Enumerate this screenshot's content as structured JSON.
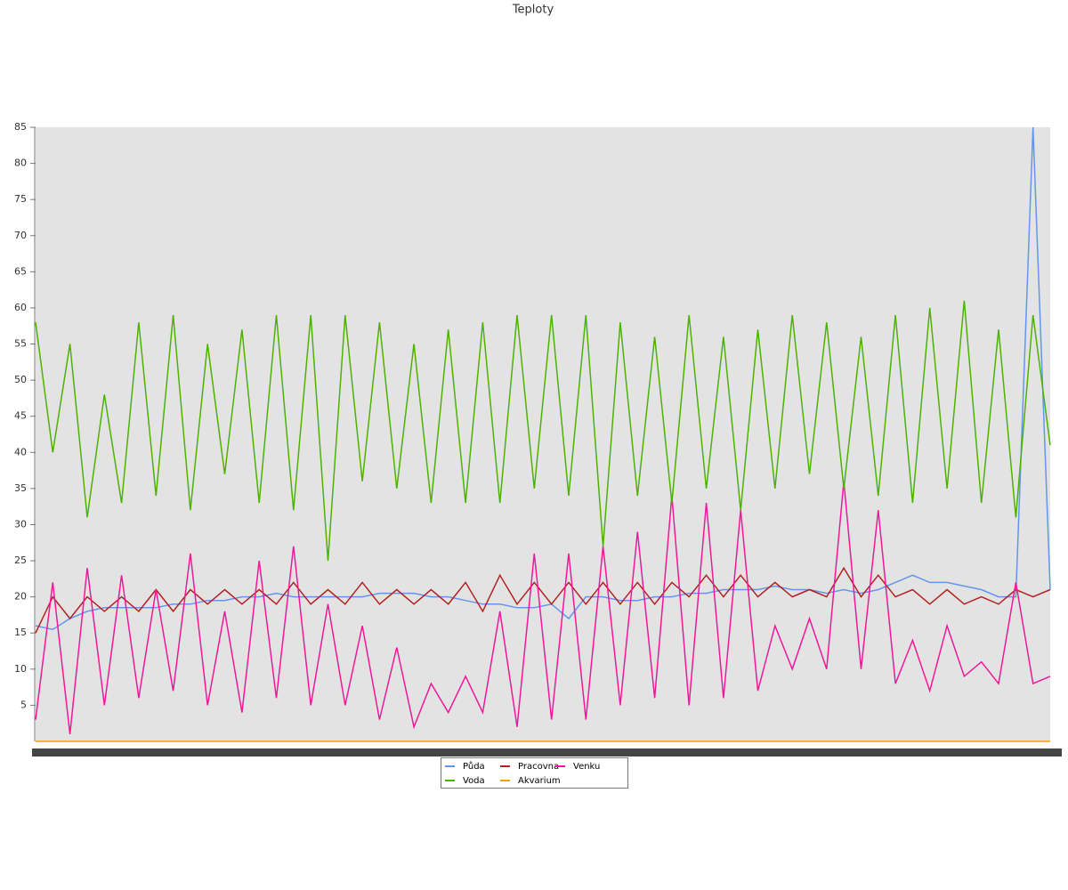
{
  "chart_data": {
    "type": "line",
    "title": "Teploty",
    "categories": [
      null,
      null,
      null,
      null,
      null,
      null,
      null,
      null,
      null,
      null,
      null,
      null,
      null,
      null,
      null,
      null,
      null,
      null,
      null,
      null,
      null,
      null,
      null,
      null,
      null,
      null,
      null,
      null,
      null,
      null,
      null,
      null,
      null,
      null,
      null,
      null,
      null,
      null,
      null,
      null,
      null,
      null,
      null,
      null,
      null,
      null,
      null,
      null,
      null,
      null,
      null,
      null,
      null,
      null,
      null,
      null,
      null,
      null,
      null,
      null
    ],
    "ylim": [
      0,
      85
    ],
    "yticks": [
      5,
      10,
      15,
      20,
      25,
      30,
      35,
      40,
      45,
      50,
      55,
      60,
      65,
      70,
      75,
      80,
      85
    ],
    "grid": false,
    "series": [
      {
        "name": "Půda",
        "color": "#6495ed",
        "values": [
          16,
          15.5,
          17,
          18,
          18.5,
          18.5,
          18.5,
          18.5,
          19,
          19,
          19.5,
          19.5,
          20,
          20,
          20.5,
          20,
          20,
          20,
          20,
          20,
          20.5,
          20.5,
          20.5,
          20,
          20,
          19.5,
          19,
          19,
          18.5,
          18.5,
          19,
          17,
          20,
          20,
          19.5,
          19.5,
          20,
          20,
          20.5,
          20.5,
          21,
          21,
          21,
          21.5,
          21,
          21,
          20.5,
          21,
          20.5,
          21,
          22,
          23,
          22,
          22,
          21.5,
          21,
          20,
          20,
          85,
          21
        ]
      },
      {
        "name": "Pracovna",
        "color": "#b22222",
        "values": [
          15,
          20,
          17,
          20,
          18,
          20,
          18,
          21,
          18,
          21,
          19,
          21,
          19,
          21,
          19,
          22,
          19,
          21,
          19,
          22,
          19,
          21,
          19,
          21,
          19,
          22,
          18,
          23,
          19,
          22,
          19,
          22,
          19,
          22,
          19,
          22,
          19,
          22,
          20,
          23,
          20,
          23,
          20,
          22,
          20,
          21,
          20,
          24,
          20,
          23,
          20,
          21,
          19,
          21,
          19,
          20,
          19,
          21,
          20,
          21
        ]
      },
      {
        "name": "Venku",
        "color": "#f0189a",
        "values": [
          3,
          22,
          1,
          24,
          5,
          23,
          6,
          21,
          7,
          26,
          5,
          18,
          4,
          25,
          6,
          27,
          5,
          19,
          5,
          16,
          3,
          13,
          2,
          8,
          4,
          9,
          4,
          18,
          2,
          26,
          3,
          26,
          3,
          27,
          5,
          29,
          6,
          34,
          5,
          33,
          6,
          32,
          7,
          16,
          10,
          17,
          10,
          36,
          10,
          32,
          8,
          14,
          7,
          16,
          9,
          11,
          8,
          22,
          8,
          9
        ]
      },
      {
        "name": "Voda",
        "color": "#4cb400",
        "values": [
          58,
          40,
          55,
          31,
          48,
          33,
          58,
          34,
          59,
          32,
          55,
          37,
          57,
          33,
          59,
          32,
          59,
          25,
          59,
          36,
          58,
          35,
          55,
          33,
          57,
          33,
          58,
          33,
          59,
          35,
          59,
          34,
          59,
          27,
          58,
          34,
          56,
          33,
          59,
          35,
          56,
          32,
          57,
          35,
          59,
          37,
          58,
          35,
          56,
          34,
          59,
          33,
          60,
          35,
          61,
          33,
          57,
          31,
          59,
          41
        ]
      },
      {
        "name": "Akvarium",
        "color": "#f0a000",
        "values": [
          0,
          0,
          0,
          0,
          0,
          0,
          0,
          0,
          0,
          0,
          0,
          0,
          0,
          0,
          0,
          0,
          0,
          0,
          0,
          0,
          0,
          0,
          0,
          0,
          0,
          0,
          0,
          0,
          0,
          0,
          0,
          0,
          0,
          0,
          0,
          0,
          0,
          0,
          0,
          0,
          0,
          0,
          0,
          0,
          0,
          0,
          0,
          0,
          0,
          0,
          0,
          0,
          0,
          0,
          0,
          0,
          0,
          0,
          0,
          0
        ]
      }
    ]
  }
}
